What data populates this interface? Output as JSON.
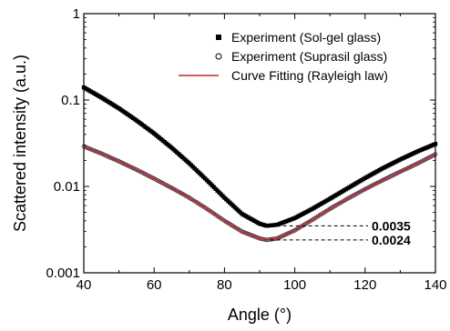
{
  "chart_data": {
    "type": "scatter",
    "xlabel": "Angle (°)",
    "ylabel": "Scattered intensity (a.u.)",
    "xlim": [
      40,
      140
    ],
    "ylim": [
      0.001,
      1
    ],
    "yscale": "log",
    "grid": false,
    "legend_position": "top-right",
    "x_ticks": [
      40,
      60,
      80,
      100,
      120,
      140
    ],
    "x_tick_labels": [
      "40",
      "60",
      "80",
      "100",
      "120",
      "140"
    ],
    "y_ticks": [
      0.001,
      0.01,
      0.1,
      1
    ],
    "y_tick_labels": [
      "0.001",
      "0.01",
      "0.1",
      "1"
    ],
    "series": [
      {
        "name": "Experiment (Sol-gel glass)",
        "marker": "filled-square",
        "color": "#000000",
        "x": [
          40,
          45,
          50,
          55,
          60,
          65,
          70,
          75,
          80,
          85,
          90,
          92,
          95,
          100,
          105,
          110,
          115,
          120,
          125,
          130,
          135,
          140
        ],
        "y": [
          0.14,
          0.107,
          0.08,
          0.058,
          0.041,
          0.028,
          0.0185,
          0.0118,
          0.0074,
          0.0048,
          0.0037,
          0.0035,
          0.0036,
          0.0043,
          0.0055,
          0.0072,
          0.0095,
          0.0125,
          0.0162,
          0.0205,
          0.0255,
          0.031
        ]
      },
      {
        "name": "Experiment (Suprasil glass)",
        "marker": "open-circle",
        "color": "#000000",
        "x": [
          40,
          45,
          50,
          55,
          60,
          65,
          70,
          75,
          80,
          85,
          90,
          92,
          95,
          100,
          105,
          110,
          115,
          120,
          125,
          130,
          135,
          140
        ],
        "y": [
          0.029,
          0.024,
          0.0195,
          0.0156,
          0.0123,
          0.0096,
          0.0074,
          0.0055,
          0.004,
          0.003,
          0.0025,
          0.0024,
          0.0025,
          0.0031,
          0.0041,
          0.0055,
          0.0072,
          0.0093,
          0.0118,
          0.0148,
          0.0185,
          0.0235
        ]
      },
      {
        "name": "Curve Fitting (Rayleigh law)",
        "marker": "line",
        "color": "#cc2222",
        "x": [
          40,
          45,
          50,
          55,
          60,
          65,
          70,
          75,
          80,
          85,
          90,
          92,
          95,
          100,
          105,
          110,
          115,
          120,
          125,
          130,
          135,
          140
        ],
        "y": [
          0.029,
          0.024,
          0.0195,
          0.0156,
          0.0123,
          0.0096,
          0.0074,
          0.0055,
          0.004,
          0.003,
          0.0025,
          0.0024,
          0.0025,
          0.0031,
          0.0041,
          0.0055,
          0.0072,
          0.0093,
          0.0118,
          0.0148,
          0.0185,
          0.0235
        ]
      }
    ],
    "annotations": [
      {
        "label": "0.0035",
        "y": 0.0035,
        "x_start": 92
      },
      {
        "label": "0.0024",
        "y": 0.0024,
        "x_start": 92
      }
    ]
  }
}
